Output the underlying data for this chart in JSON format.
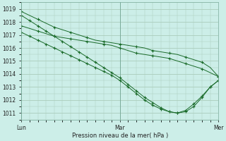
{
  "bg_color": "#cceee8",
  "grid_color": "#aaccbb",
  "line_color": "#1a6b2a",
  "xlabel": "Pression niveau de la mer( hPa )",
  "xtick_labels": [
    "Lun",
    "Mar",
    "Mer"
  ],
  "xtick_positions": [
    0,
    12,
    24
  ],
  "ylim": [
    1010.5,
    1019.5
  ],
  "yticks": [
    1011,
    1012,
    1013,
    1014,
    1015,
    1016,
    1017,
    1018,
    1019
  ],
  "figsize": [
    3.2,
    2.0
  ],
  "dpi": 100,
  "series": [
    {
      "x": [
        0,
        1,
        2,
        3,
        4,
        5,
        6,
        7,
        8,
        9,
        10,
        11,
        12,
        13,
        14,
        15,
        16,
        17,
        18,
        19,
        20,
        21,
        22,
        23,
        24
      ],
      "y": [
        1018.8,
        1018.5,
        1018.2,
        1017.9,
        1017.6,
        1017.4,
        1017.2,
        1017.0,
        1016.8,
        1016.6,
        1016.5,
        1016.4,
        1016.3,
        1016.2,
        1016.1,
        1016.0,
        1015.8,
        1015.7,
        1015.6,
        1015.5,
        1015.3,
        1015.1,
        1014.9,
        1014.5,
        1013.8
      ],
      "marker_every": 2
    },
    {
      "x": [
        0,
        1,
        2,
        3,
        4,
        5,
        6,
        7,
        8,
        9,
        10,
        11,
        12,
        13,
        14,
        15,
        16,
        17,
        18,
        19,
        20,
        21,
        22,
        23,
        24
      ],
      "y": [
        1017.7,
        1017.5,
        1017.3,
        1017.1,
        1016.9,
        1016.8,
        1016.7,
        1016.6,
        1016.5,
        1016.4,
        1016.3,
        1016.2,
        1016.0,
        1015.8,
        1015.6,
        1015.5,
        1015.4,
        1015.3,
        1015.2,
        1015.0,
        1014.8,
        1014.6,
        1014.4,
        1014.1,
        1013.8
      ],
      "marker_every": 2
    },
    {
      "x": [
        0,
        1,
        2,
        3,
        4,
        5,
        6,
        7,
        8,
        9,
        10,
        11,
        12,
        13,
        14,
        15,
        16,
        17,
        18,
        19,
        20,
        21,
        22,
        23,
        24
      ],
      "y": [
        1018.5,
        1018.1,
        1017.7,
        1017.3,
        1016.9,
        1016.5,
        1016.1,
        1015.7,
        1015.3,
        1014.9,
        1014.5,
        1014.1,
        1013.7,
        1013.2,
        1012.7,
        1012.2,
        1011.8,
        1011.4,
        1011.1,
        1011.0,
        1011.1,
        1011.5,
        1012.2,
        1013.0,
        1013.5
      ],
      "marker_every": 1
    },
    {
      "x": [
        0,
        1,
        2,
        3,
        4,
        5,
        6,
        7,
        8,
        9,
        10,
        11,
        12,
        13,
        14,
        15,
        16,
        17,
        18,
        19,
        20,
        21,
        22,
        23,
        24
      ],
      "y": [
        1017.2,
        1016.9,
        1016.6,
        1016.3,
        1016.0,
        1015.7,
        1015.4,
        1015.1,
        1014.8,
        1014.5,
        1014.2,
        1013.9,
        1013.5,
        1013.0,
        1012.5,
        1012.0,
        1011.6,
        1011.3,
        1011.1,
        1011.0,
        1011.2,
        1011.7,
        1012.3,
        1013.0,
        1013.5
      ],
      "marker_every": 1
    }
  ]
}
